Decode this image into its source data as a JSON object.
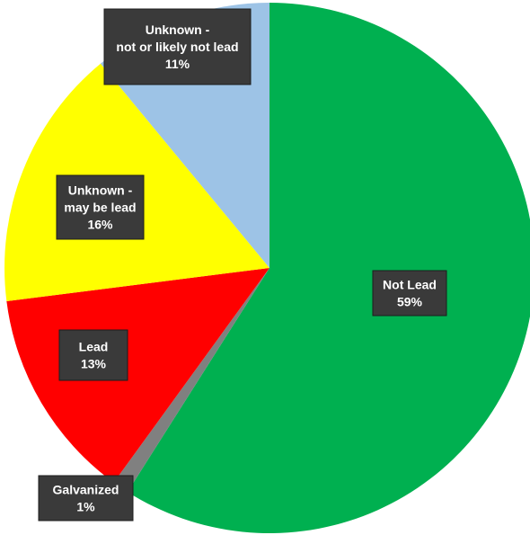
{
  "chart_data": {
    "type": "pie",
    "slices": [
      {
        "category": "Not Lead",
        "label_lines": [
          "Not Lead",
          "59%"
        ],
        "value": 59,
        "color": "#00b050"
      },
      {
        "category": "Galvanized",
        "label_lines": [
          "Galvanized",
          "1%"
        ],
        "value": 1,
        "color": "#808080"
      },
      {
        "category": "Lead",
        "label_lines": [
          "Lead",
          "13%"
        ],
        "value": 13,
        "color": "#ff0000"
      },
      {
        "category": "Unknown - may be lead",
        "label_lines": [
          "Unknown -",
          "may be lead",
          "16%"
        ],
        "value": 16,
        "color": "#ffff00"
      },
      {
        "category": "Unknown - not or likely not lead",
        "label_lines": [
          "Unknown -",
          "not or likely not lead",
          "11%"
        ],
        "value": 11,
        "color": "#9dc3e6"
      }
    ],
    "start_angle_deg": 0,
    "direction": "clockwise",
    "legend": "none"
  }
}
